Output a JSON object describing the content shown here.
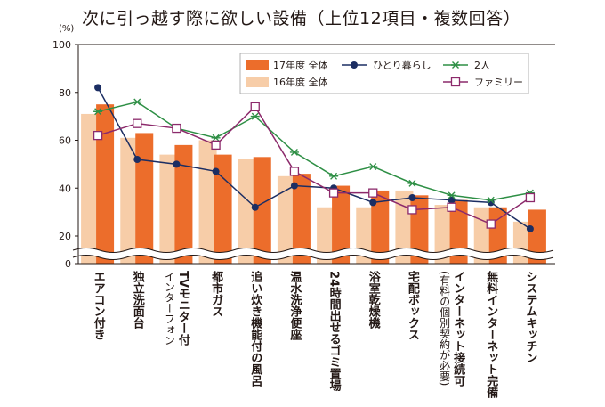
{
  "chart_data": {
    "type": "bar",
    "title": "次に引っ越す際に欲しい設備（上位12項目・複数回答）",
    "ylabel": "(%)",
    "ylim": [
      0,
      100
    ],
    "yticks": [
      0,
      20,
      40,
      60,
      80,
      100
    ],
    "axis_break": true,
    "grid": false,
    "legend_position": "top-right",
    "categories": [
      "エアコン付き",
      "独立洗面台",
      "TVモニター付\nインターフォン",
      "都市ガス",
      "追い炊き機能付の風呂",
      "温水洗浄便座",
      "24時間出せるゴミ置場",
      "浴室乾燥機",
      "宅配ボックス",
      "インターネット接続可\n(有料の個別契約が必要)",
      "無料インターネット完備",
      "システムキッチン"
    ],
    "series": [
      {
        "name": "16年度 全体",
        "kind": "bar",
        "color": "#f7cda8",
        "values": [
          71,
          61,
          54,
          60,
          52,
          45,
          32,
          32,
          39,
          33,
          32,
          26
        ]
      },
      {
        "name": "17年度 全体",
        "kind": "bar",
        "color": "#ec6d2b",
        "values": [
          75,
          63,
          58,
          54,
          53,
          46,
          41,
          39,
          37,
          35,
          32,
          31
        ]
      },
      {
        "name": "ひとり暮らし",
        "kind": "line",
        "color": "#1c2e63",
        "marker": "dot",
        "values": [
          82,
          52,
          50,
          47,
          32,
          41,
          40,
          34,
          36,
          35,
          34,
          23
        ]
      },
      {
        "name": "2人",
        "kind": "line",
        "color": "#2e8f45",
        "marker": "star",
        "values": [
          72,
          76,
          65,
          61,
          70,
          55,
          45,
          49,
          42,
          37,
          35,
          38
        ]
      },
      {
        "name": "ファミリー",
        "kind": "line",
        "color": "#8c2a6b",
        "marker": "square",
        "values": [
          62,
          67,
          65,
          58,
          74,
          47,
          38,
          38,
          31,
          32,
          25,
          36
        ]
      }
    ]
  }
}
